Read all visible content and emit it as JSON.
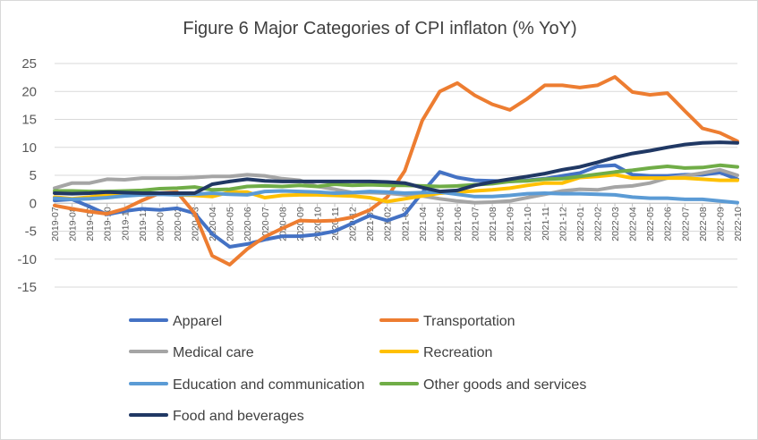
{
  "chart_data": {
    "type": "line",
    "title": "Figure 6 Major Categories of CPI inflaton (% YoY)",
    "xlabel": "",
    "ylabel": "",
    "ylim": [
      -15,
      25
    ],
    "yticks": [
      -15,
      -10,
      -5,
      0,
      5,
      10,
      15,
      20,
      25
    ],
    "grid": true,
    "legend_position": "bottom",
    "categories": [
      "2019-07",
      "2019-08",
      "2019-09",
      "2019-10",
      "2019-11",
      "2019-12",
      "2020-01",
      "2020-02",
      "2020-03",
      "2020-04",
      "2020-05",
      "2020-06",
      "2020-07",
      "2020-08",
      "2020-09",
      "2020-10",
      "2020-11",
      "2020-12",
      "2021-01",
      "2021-02",
      "2021-03",
      "2021-04",
      "2021-05",
      "2021-06",
      "2021-07",
      "2021-08",
      "2021-09",
      "2021-10",
      "2021-11",
      "2021-12",
      "2022-01",
      "2022-02",
      "2022-03",
      "2022-04",
      "2022-05",
      "2022-06",
      "2022-07",
      "2022-08",
      "2022-09",
      "2022-10"
    ],
    "series": [
      {
        "name": "Apparel",
        "color": "#4472C4",
        "values": [
          0.5,
          0.7,
          -0.6,
          -2.0,
          -1.4,
          -1.0,
          -1.2,
          -0.9,
          -1.8,
          -5.5,
          -7.8,
          -7.3,
          -6.5,
          -5.9,
          -5.9,
          -5.6,
          -5.0,
          -3.6,
          -2.2,
          -3.1,
          -2.0,
          1.9,
          5.6,
          4.6,
          4.1,
          4.0,
          3.9,
          4.1,
          4.4,
          4.9,
          5.4,
          6.6,
          6.8,
          5.1,
          4.9,
          4.9,
          5.1,
          5.1,
          5.5,
          4.3
        ]
      },
      {
        "name": "Transportation",
        "color": "#ED7D31",
        "values": [
          -0.4,
          -1.0,
          -1.5,
          -1.9,
          -1.0,
          0.5,
          1.8,
          2.0,
          -1.8,
          -9.4,
          -11.0,
          -8.2,
          -6.0,
          -4.5,
          -3.1,
          -3.2,
          -3.1,
          -2.5,
          -1.2,
          1.1,
          5.8,
          14.8,
          20.0,
          21.5,
          19.3,
          17.7,
          16.7,
          18.7,
          21.1,
          21.1,
          20.7,
          21.1,
          22.6,
          19.9,
          19.4,
          19.7,
          16.5,
          13.4,
          12.6,
          11.1
        ]
      },
      {
        "name": "Medical care",
        "color": "#A5A5A5",
        "values": [
          2.7,
          3.6,
          3.6,
          4.3,
          4.2,
          4.5,
          4.5,
          4.5,
          4.6,
          4.8,
          4.8,
          5.1,
          4.9,
          4.4,
          4.1,
          3.0,
          2.5,
          1.9,
          1.9,
          1.8,
          1.5,
          1.3,
          0.8,
          0.4,
          0.1,
          0.2,
          0.4,
          1.0,
          1.6,
          2.2,
          2.5,
          2.4,
          2.9,
          3.1,
          3.6,
          4.5,
          4.9,
          5.4,
          6.0,
          5.0
        ]
      },
      {
        "name": "Recreation",
        "color": "#FFC000",
        "values": [
          1.1,
          0.8,
          1.1,
          1.5,
          1.7,
          1.9,
          1.7,
          1.5,
          1.4,
          1.2,
          2.0,
          2.0,
          1.0,
          1.4,
          1.5,
          1.5,
          1.4,
          1.3,
          1.0,
          0.3,
          0.8,
          1.3,
          1.8,
          2.0,
          2.2,
          2.4,
          2.7,
          3.2,
          3.6,
          3.6,
          4.6,
          4.8,
          5.1,
          4.5,
          4.5,
          4.5,
          4.5,
          4.3,
          4.1,
          4.1
        ]
      },
      {
        "name": "Education and communication",
        "color": "#5B9BD5",
        "values": [
          0.9,
          0.7,
          0.8,
          1.0,
          1.3,
          1.5,
          1.6,
          1.5,
          1.6,
          1.8,
          1.6,
          1.5,
          2.1,
          2.2,
          2.1,
          2.0,
          1.8,
          1.9,
          2.1,
          2.0,
          1.8,
          1.9,
          2.0,
          1.6,
          1.2,
          1.2,
          1.4,
          1.7,
          1.8,
          1.7,
          1.7,
          1.6,
          1.5,
          1.1,
          0.9,
          0.9,
          0.7,
          0.7,
          0.4,
          0.1
        ]
      },
      {
        "name": "Other goods and services",
        "color": "#70AD47",
        "values": [
          2.2,
          2.2,
          2.1,
          2.1,
          2.2,
          2.3,
          2.6,
          2.7,
          2.9,
          2.4,
          2.5,
          3.0,
          3.1,
          3.0,
          3.2,
          3.0,
          3.4,
          3.2,
          3.3,
          3.2,
          3.2,
          3.1,
          3.0,
          3.1,
          3.3,
          3.5,
          3.9,
          4.0,
          4.3,
          4.4,
          4.8,
          5.2,
          5.6,
          5.9,
          6.3,
          6.6,
          6.3,
          6.4,
          6.8,
          6.5
        ]
      },
      {
        "name": "Food and beverages",
        "color": "#203864",
        "values": [
          1.8,
          1.7,
          1.8,
          2.0,
          1.9,
          1.8,
          1.8,
          1.8,
          1.8,
          3.4,
          3.9,
          4.3,
          4.0,
          3.9,
          3.9,
          3.9,
          3.9,
          3.9,
          3.9,
          3.8,
          3.6,
          2.8,
          2.1,
          2.3,
          3.2,
          3.8,
          4.3,
          4.8,
          5.3,
          6.0,
          6.5,
          7.3,
          8.2,
          8.9,
          9.4,
          10.0,
          10.5,
          10.8,
          10.9,
          10.8
        ]
      }
    ]
  }
}
